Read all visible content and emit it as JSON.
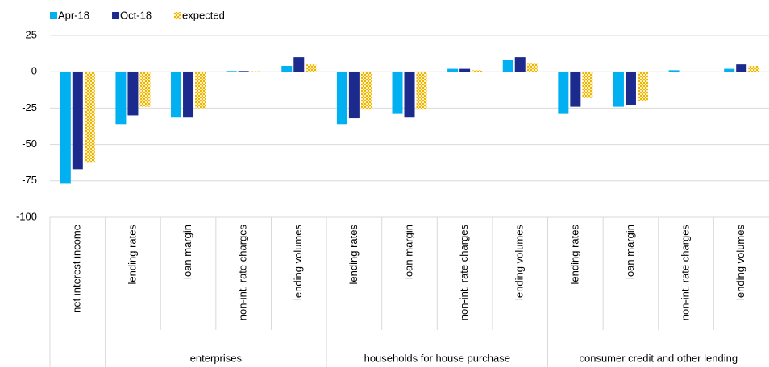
{
  "chart_data": {
    "type": "bar",
    "groups": [
      {
        "categories": [
          "net interest income"
        ]
      },
      {
        "name": "enterprises",
        "categories": [
          "lending rates",
          "loan margin",
          "non-int. rate charges",
          "lending volumes"
        ]
      },
      {
        "name": "households for house purchase",
        "categories": [
          "lending rates",
          "loan margin",
          "non-int. rate charges",
          "lending volumes"
        ]
      },
      {
        "name": "consumer credit and other lending",
        "categories": [
          "lending rates",
          "loan margin",
          "non-int. rate charges",
          "lending volumes"
        ]
      }
    ],
    "series": [
      {
        "name": "Apr-18",
        "color": "#00b0f0",
        "values": [
          -77,
          -36,
          -31,
          0.5,
          4,
          -36,
          -29,
          2,
          8,
          -29,
          -24,
          1,
          2
        ]
      },
      {
        "name": "Oct-18",
        "color": "#1b2a8c",
        "values": [
          -67,
          -30,
          -31,
          0.5,
          10,
          -32,
          -31,
          2,
          10,
          -24,
          -23,
          0,
          5
        ]
      },
      {
        "name": "expected",
        "color": "#f0b400",
        "pattern": "checker",
        "values": [
          -62,
          -24,
          -25,
          0.3,
          5,
          -26,
          -26,
          1,
          6,
          -18,
          -20,
          0,
          4
        ]
      }
    ],
    "ylim": [
      -100,
      25
    ],
    "yticks": [
      -100,
      -75,
      -50,
      -25,
      0,
      25
    ],
    "grid": true
  }
}
